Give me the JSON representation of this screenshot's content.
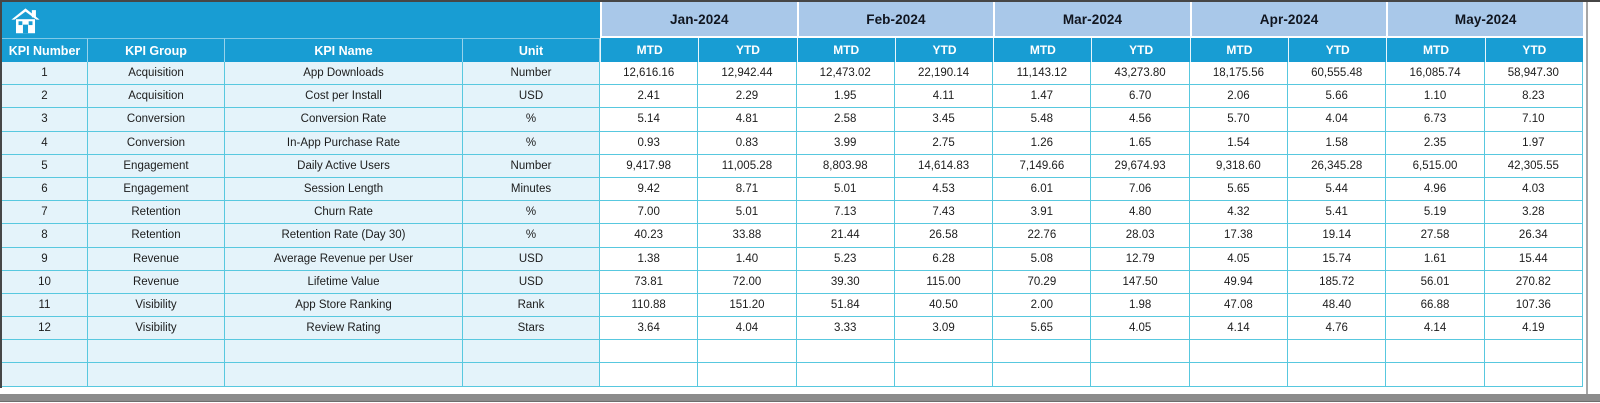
{
  "toolbar": {
    "home_icon": "home-icon"
  },
  "table": {
    "left_headers": [
      "KPI Number",
      "KPI Group",
      "KPI Name",
      "Unit"
    ],
    "months": [
      "Jan-2024",
      "Feb-2024",
      "Mar-2024",
      "Apr-2024",
      "May-2024"
    ],
    "sub_headers": [
      "MTD",
      "YTD"
    ],
    "rows": [
      {
        "number": "1",
        "group": "Acquisition",
        "name": "App Downloads",
        "unit": "Number",
        "values": [
          "12,616.16",
          "12,942.44",
          "12,473.02",
          "22,190.14",
          "11,143.12",
          "43,273.80",
          "18,175.56",
          "60,555.48",
          "16,085.74",
          "58,947.30"
        ]
      },
      {
        "number": "2",
        "group": "Acquisition",
        "name": "Cost per Install",
        "unit": "USD",
        "values": [
          "2.41",
          "2.29",
          "1.95",
          "4.11",
          "1.47",
          "6.70",
          "2.06",
          "5.66",
          "1.10",
          "8.23"
        ]
      },
      {
        "number": "3",
        "group": "Conversion",
        "name": "Conversion Rate",
        "unit": "%",
        "values": [
          "5.14",
          "4.81",
          "2.58",
          "3.45",
          "5.48",
          "4.56",
          "5.70",
          "4.04",
          "6.73",
          "7.10"
        ]
      },
      {
        "number": "4",
        "group": "Conversion",
        "name": "In-App Purchase Rate",
        "unit": "%",
        "values": [
          "0.93",
          "0.83",
          "3.99",
          "2.75",
          "1.26",
          "1.65",
          "1.54",
          "1.58",
          "2.35",
          "1.97"
        ]
      },
      {
        "number": "5",
        "group": "Engagement",
        "name": "Daily Active Users",
        "unit": "Number",
        "values": [
          "9,417.98",
          "11,005.28",
          "8,803.98",
          "14,614.83",
          "7,149.66",
          "29,674.93",
          "9,318.60",
          "26,345.28",
          "6,515.00",
          "42,305.55"
        ]
      },
      {
        "number": "6",
        "group": "Engagement",
        "name": "Session Length",
        "unit": "Minutes",
        "values": [
          "9.42",
          "8.71",
          "5.01",
          "4.53",
          "6.01",
          "7.06",
          "5.65",
          "5.44",
          "4.96",
          "4.03"
        ]
      },
      {
        "number": "7",
        "group": "Retention",
        "name": "Churn Rate",
        "unit": "%",
        "values": [
          "7.00",
          "5.01",
          "7.13",
          "7.43",
          "3.91",
          "4.80",
          "4.32",
          "5.41",
          "5.19",
          "3.28"
        ]
      },
      {
        "number": "8",
        "group": "Retention",
        "name": "Retention Rate (Day 30)",
        "unit": "%",
        "values": [
          "40.23",
          "33.88",
          "21.44",
          "26.58",
          "22.76",
          "28.03",
          "17.38",
          "19.14",
          "27.58",
          "26.34"
        ]
      },
      {
        "number": "9",
        "group": "Revenue",
        "name": "Average Revenue per User",
        "unit": "USD",
        "values": [
          "1.38",
          "1.40",
          "5.23",
          "6.28",
          "5.08",
          "12.79",
          "4.05",
          "15.74",
          "1.61",
          "15.44"
        ]
      },
      {
        "number": "10",
        "group": "Revenue",
        "name": "Lifetime Value",
        "unit": "USD",
        "values": [
          "73.81",
          "72.00",
          "39.30",
          "115.00",
          "70.29",
          "147.50",
          "49.94",
          "185.72",
          "56.01",
          "270.82"
        ]
      },
      {
        "number": "11",
        "group": "Visibility",
        "name": "App Store Ranking",
        "unit": "Rank",
        "values": [
          "110.88",
          "151.20",
          "51.84",
          "40.50",
          "2.00",
          "1.98",
          "47.08",
          "48.40",
          "66.88",
          "107.36"
        ]
      },
      {
        "number": "12",
        "group": "Visibility",
        "name": "Review Rating",
        "unit": "Stars",
        "values": [
          "3.64",
          "4.04",
          "3.33",
          "3.09",
          "5.65",
          "4.05",
          "4.14",
          "4.76",
          "4.14",
          "4.19"
        ]
      }
    ],
    "empty_row_count": 2
  },
  "colors": {
    "accent": "#189DD3",
    "month_band": "#A9C8E9",
    "row_tint": "#E4F3FA",
    "grid_line": "#58C8DF"
  }
}
